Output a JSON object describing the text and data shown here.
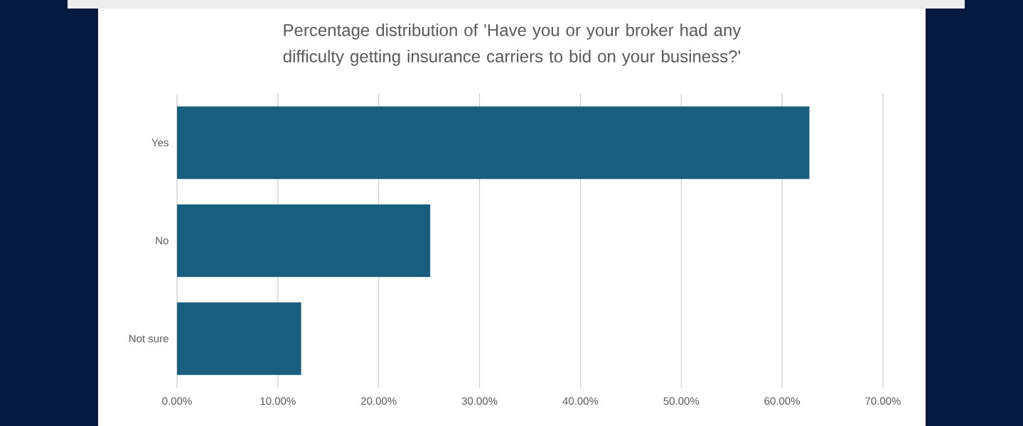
{
  "chart_data": {
    "type": "bar",
    "orientation": "horizontal",
    "title": "Percentage distribution of 'Have you or your broker had any difficulty getting insurance carriers to bid on your business?'",
    "categories": [
      "Yes",
      "No",
      "Not sure"
    ],
    "values": [
      62.7,
      25.1,
      12.3
    ],
    "color": "#175e7f",
    "xlim": [
      0,
      70
    ],
    "xticks": [
      {
        "value": 0,
        "label": "0.00%"
      },
      {
        "value": 10,
        "label": "10.00%"
      },
      {
        "value": 20,
        "label": "20.00%"
      },
      {
        "value": 30,
        "label": "30.00%"
      },
      {
        "value": 40,
        "label": "40.00%"
      },
      {
        "value": 50,
        "label": "50.00%"
      },
      {
        "value": 60,
        "label": "60.00%"
      },
      {
        "value": 70,
        "label": "70.00%"
      }
    ],
    "grid": "x"
  }
}
